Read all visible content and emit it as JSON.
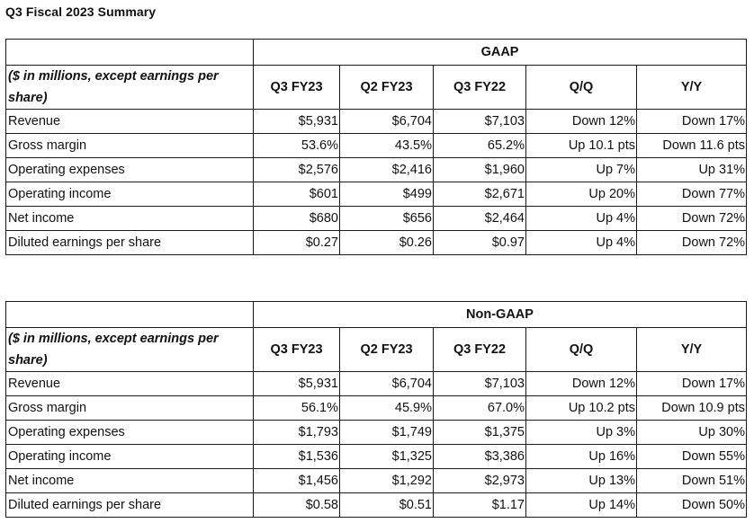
{
  "title": "Q3 Fiscal 2023 Summary",
  "columns": [
    "Q3 FY23",
    "Q2 FY23",
    "Q3 FY22",
    "Q/Q",
    "Y/Y"
  ],
  "description_header": "($ in millions, except earnings per share)",
  "tables": [
    {
      "section": "GAAP",
      "rows": [
        {
          "label": "Revenue",
          "values": [
            "$5,931",
            "$6,704",
            "$7,103",
            "Down 12%",
            "Down 17%"
          ]
        },
        {
          "label": "Gross margin",
          "values": [
            "53.6%",
            "43.5%",
            "65.2%",
            "Up 10.1 pts",
            "Down 11.6 pts"
          ]
        },
        {
          "label": "Operating expenses",
          "values": [
            "$2,576",
            "$2,416",
            "$1,960",
            "Up 7%",
            "Up 31%"
          ]
        },
        {
          "label": "Operating income",
          "values": [
            "$601",
            "$499",
            "$2,671",
            "Up 20%",
            "Down 77%"
          ]
        },
        {
          "label": "Net income",
          "values": [
            "$680",
            "$656",
            "$2,464",
            "Up 4%",
            "Down 72%"
          ]
        },
        {
          "label": "Diluted earnings per share",
          "values": [
            "$0.27",
            "$0.26",
            "$0.97",
            "Up 4%",
            "Down 72%"
          ]
        }
      ]
    },
    {
      "section": "Non-GAAP",
      "rows": [
        {
          "label": "Revenue",
          "values": [
            "$5,931",
            "$6,704",
            "$7,103",
            "Down 12%",
            "Down 17%"
          ]
        },
        {
          "label": "Gross margin",
          "values": [
            "56.1%",
            "45.9%",
            "67.0%",
            "Up 10.2 pts",
            "Down 10.9 pts"
          ]
        },
        {
          "label": "Operating expenses",
          "values": [
            "$1,793",
            "$1,749",
            "$1,375",
            "Up 3%",
            "Up 30%"
          ]
        },
        {
          "label": "Operating income",
          "values": [
            "$1,536",
            "$1,325",
            "$3,386",
            "Up 16%",
            "Down 55%"
          ]
        },
        {
          "label": "Net income",
          "values": [
            "$1,456",
            "$1,292",
            "$2,973",
            "Up 13%",
            "Down 51%"
          ]
        },
        {
          "label": "Diluted earnings per share",
          "values": [
            "$0.58",
            "$0.51",
            "$1.17",
            "Up 14%",
            "Down 50%"
          ]
        }
      ]
    }
  ]
}
